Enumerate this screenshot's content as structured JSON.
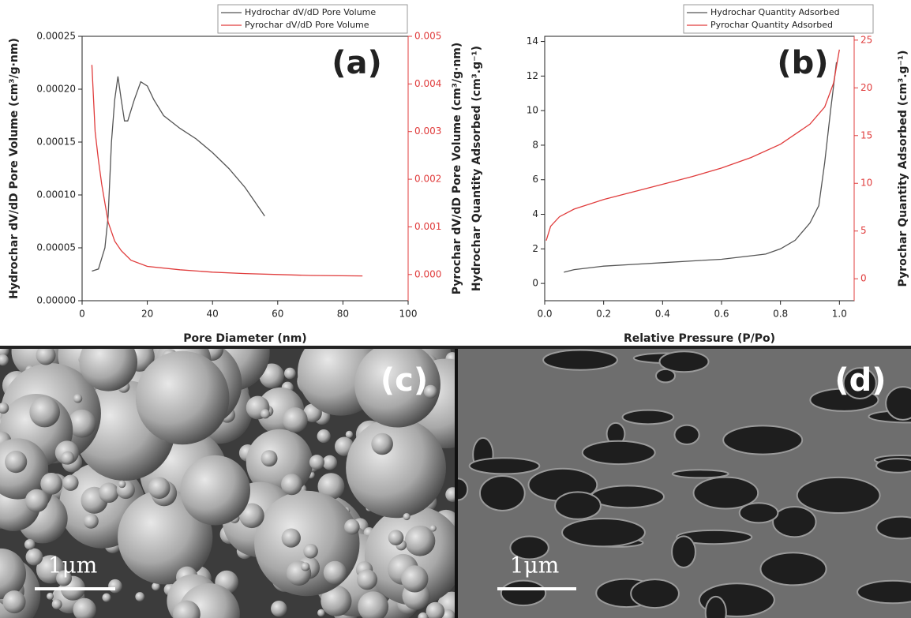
{
  "chart_data": [
    {
      "type": "line",
      "annotation": "(a)",
      "x_label": "Pore Diameter (nm)",
      "y_label": "Hydrochar dV/dD Pore Volume (cm³/g·nm)",
      "y2_label": "Pyrochar dV/dD Pore Volume (cm³/g·nm)",
      "xlim": [
        0,
        100
      ],
      "xticks": [
        0,
        20,
        40,
        60,
        80,
        100
      ],
      "ylim": [
        0,
        0.00025
      ],
      "yticks": [
        {
          "value": 0,
          "label": "0.00000"
        },
        {
          "value": 5e-05,
          "label": "0.00005"
        },
        {
          "value": 0.0001,
          "label": "0.00010"
        },
        {
          "value": 0.00015,
          "label": "0.00015"
        },
        {
          "value": 0.0002,
          "label": "0.00020"
        },
        {
          "value": 0.00025,
          "label": "0.00025"
        }
      ],
      "y2lim": [
        -0.00055,
        0.005
      ],
      "y2ticks": [
        {
          "value": 0,
          "label": "0.000"
        },
        {
          "value": 0.001,
          "label": "0.001"
        },
        {
          "value": 0.002,
          "label": "0.002"
        },
        {
          "value": 0.003,
          "label": "0.003"
        },
        {
          "value": 0.004,
          "label": "0.004"
        },
        {
          "value": 0.005,
          "label": "0.005"
        }
      ],
      "y2color": "#e03c3c",
      "series": [
        {
          "name": "Hydrochar dV/dD Pore Volume",
          "color": "#555555",
          "x": [
            3,
            5,
            7,
            8,
            9,
            10,
            11,
            12,
            13,
            14,
            16,
            18,
            20,
            22,
            25,
            30,
            35,
            40,
            45,
            50,
            56
          ],
          "values": [
            2.8e-05,
            3e-05,
            5e-05,
            8e-05,
            0.00015,
            0.00019,
            0.000212,
            0.00019,
            0.00017,
            0.00017,
            0.00019,
            0.000207,
            0.000203,
            0.00019,
            0.000175,
            0.000163,
            0.000153,
            0.00014,
            0.000125,
            0.000107,
            8e-05
          ]
        },
        {
          "name": "Pyrochar dV/dD Pore Volume",
          "color": "#e03c3c",
          "axis": "y2",
          "x": [
            3,
            4,
            5,
            6,
            7,
            8,
            10,
            12,
            15,
            20,
            30,
            40,
            50,
            60,
            70,
            86
          ],
          "values": [
            0.0044,
            0.003,
            0.0024,
            0.0019,
            0.0015,
            0.0011,
            0.0007,
            0.0005,
            0.0003,
            0.00017,
            0.0001,
            5e-05,
            2e-05,
            0,
            -2e-05,
            -3e-05
          ]
        }
      ]
    },
    {
      "type": "line",
      "annotation": "(b)",
      "x_label": "Relative Pressure (P/Po)",
      "y_label": "Hydrochar Quantity Adsorbed (cm³.g⁻¹)",
      "y2_label": "Pyrochar Quantity Adsorbed (cm³.g⁻¹)",
      "xlim": [
        0,
        1.05
      ],
      "xticks": [
        {
          "value": 0,
          "label": "0.0"
        },
        {
          "value": 0.2,
          "label": "0.2"
        },
        {
          "value": 0.4,
          "label": "0.4"
        },
        {
          "value": 0.6,
          "label": "0.6"
        },
        {
          "value": 0.8,
          "label": "0.8"
        },
        {
          "value": 1,
          "label": "1.0"
        }
      ],
      "ylim": [
        -1,
        14.3
      ],
      "yticks": [
        0,
        2,
        4,
        6,
        8,
        10,
        12,
        14
      ],
      "y2lim": [
        -2.3,
        25.4
      ],
      "y2ticks": [
        0,
        5,
        10,
        15,
        20,
        25
      ],
      "y2color": "#e03c3c",
      "series": [
        {
          "name": "Hydrochar Quantity Adsorbed",
          "color": "#555555",
          "x": [
            0.065,
            0.1,
            0.2,
            0.3,
            0.4,
            0.5,
            0.6,
            0.7,
            0.75,
            0.8,
            0.85,
            0.9,
            0.93,
            0.95,
            0.97,
            0.99
          ],
          "values": [
            0.65,
            0.8,
            1.0,
            1.1,
            1.2,
            1.3,
            1.4,
            1.6,
            1.7,
            2.0,
            2.5,
            3.5,
            4.5,
            7,
            10,
            12.8
          ]
        },
        {
          "name": "Pyrochar Quantity Adsorbed",
          "color": "#e03c3c",
          "axis": "y2",
          "x": [
            0.005,
            0.02,
            0.05,
            0.1,
            0.2,
            0.3,
            0.4,
            0.5,
            0.6,
            0.7,
            0.8,
            0.9,
            0.95,
            0.98,
            1.0
          ],
          "values": [
            4,
            5.5,
            6.5,
            7.3,
            8.3,
            9.1,
            9.9,
            10.7,
            11.6,
            12.7,
            14.1,
            16.2,
            18,
            20.5,
            24
          ]
        }
      ]
    }
  ],
  "images": [
    {
      "label": "(c)",
      "scale_bar": "1μm"
    },
    {
      "label": "(d)",
      "scale_bar": "1μm"
    }
  ]
}
